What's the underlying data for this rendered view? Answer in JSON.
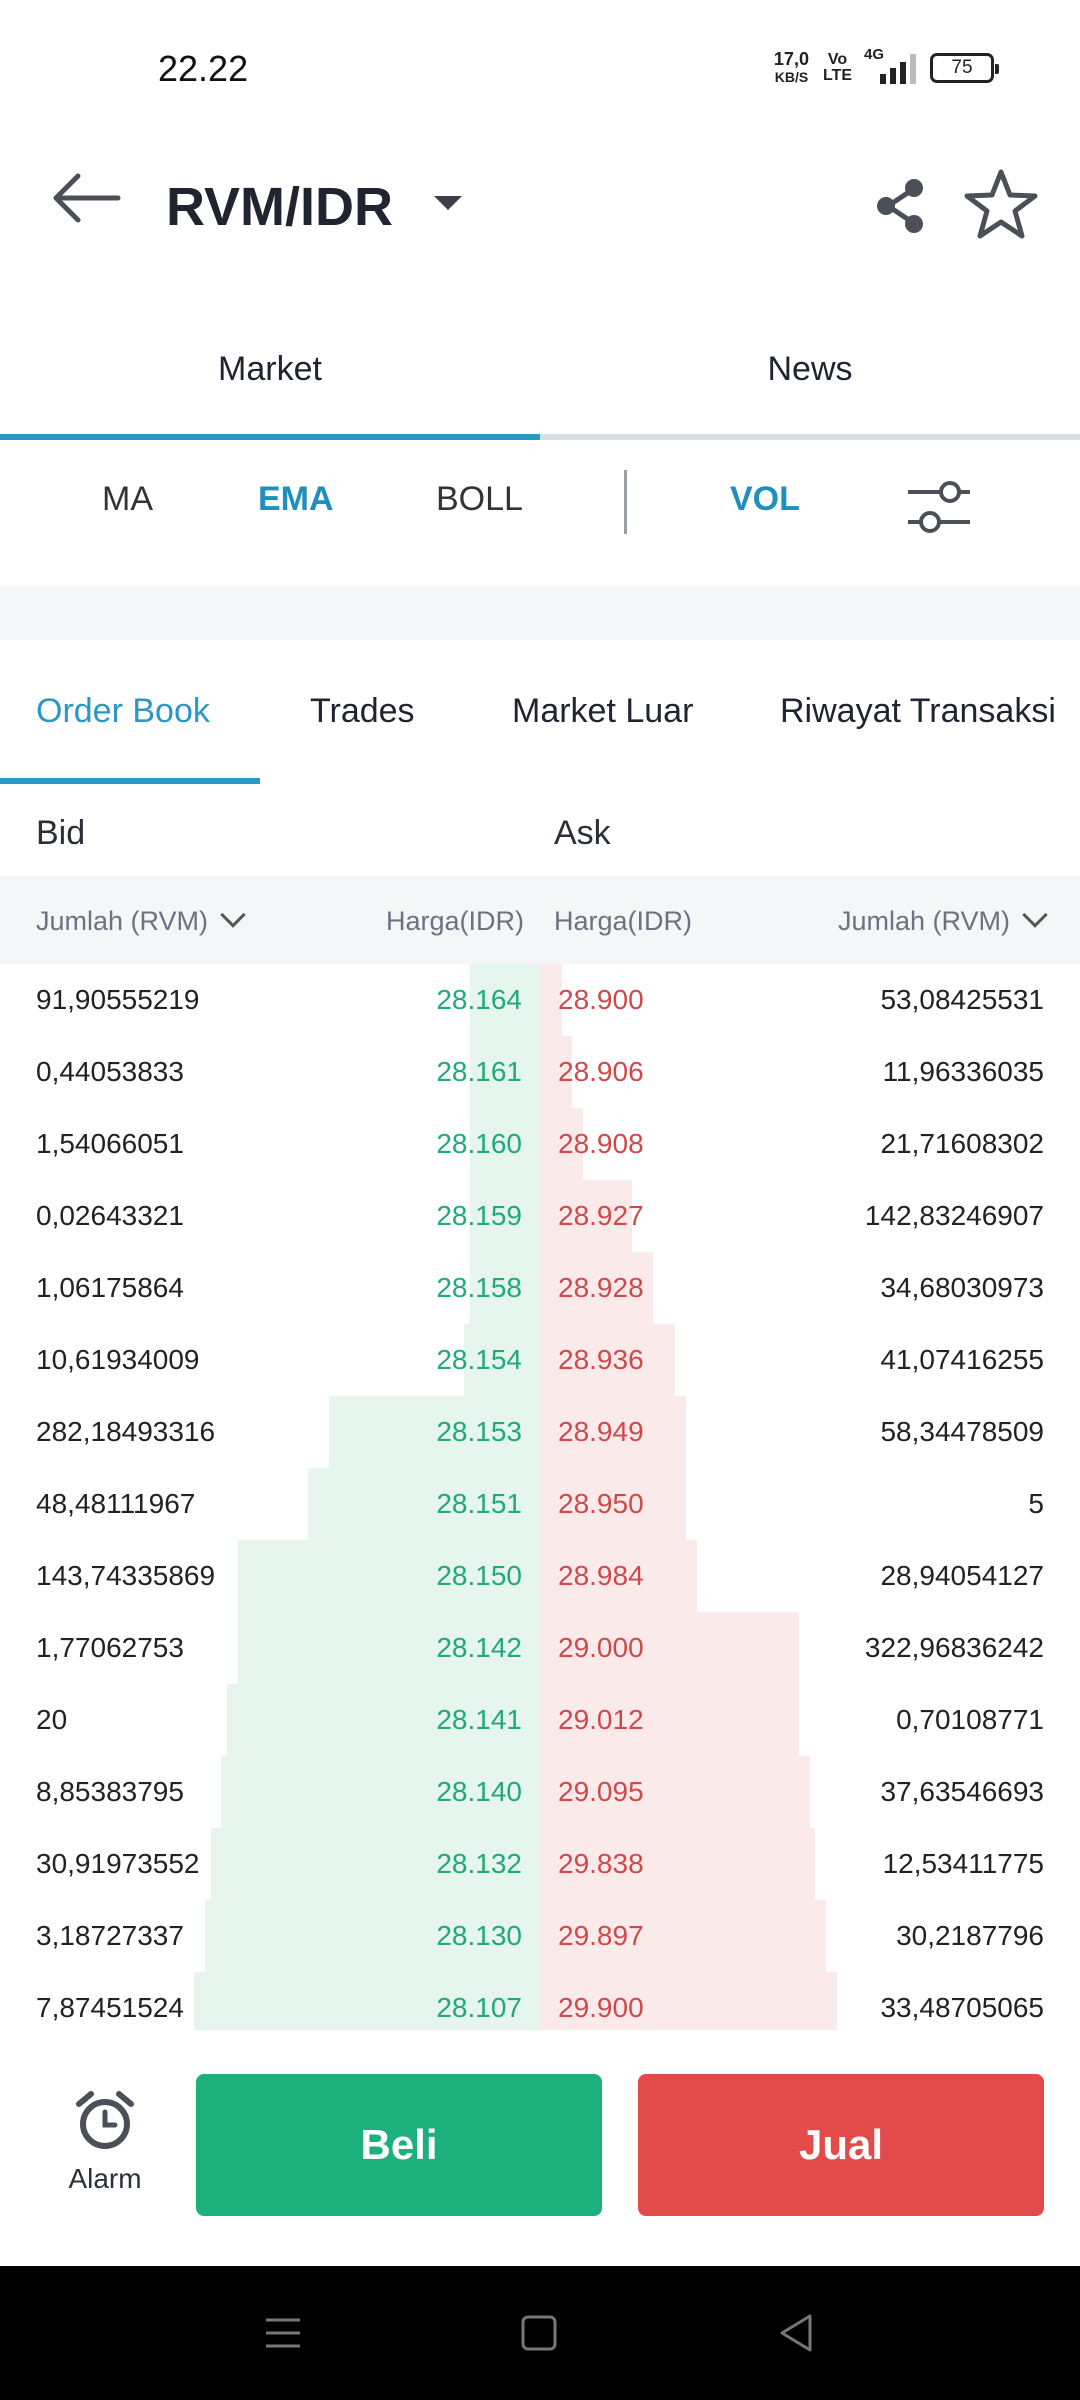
{
  "status_bar": {
    "time": "22.22",
    "net_speed_value": "17,0",
    "net_speed_unit": "KB/S",
    "volte_top": "Vo",
    "volte_bottom": "LTE",
    "network": "4G",
    "battery": "75"
  },
  "header": {
    "pair": "RVM/IDR"
  },
  "main_tabs": [
    {
      "label": "Market",
      "active": true
    },
    {
      "label": "News",
      "active": false
    }
  ],
  "indicators": {
    "ma": "MA",
    "ema": "EMA",
    "boll": "BOLL",
    "vol": "VOL"
  },
  "sub_tabs": [
    {
      "label": "Order Book",
      "active": true
    },
    {
      "label": "Trades",
      "active": false
    },
    {
      "label": "Market Luar",
      "active": false
    },
    {
      "label": "Riwayat Transaksi",
      "active": false
    }
  ],
  "order_book": {
    "bid_label": "Bid",
    "ask_label": "Ask",
    "headers": {
      "bid_qty": "Jumlah (RVM)",
      "bid_price": "Harga(IDR)",
      "ask_price": "Harga(IDR)",
      "ask_qty": "Jumlah (RVM)"
    },
    "rows": [
      {
        "bid_qty": "91,90555219",
        "bid_price": "28.164",
        "ask_price": "28.900",
        "ask_qty": "53,08425531",
        "bid_depth": 0.13,
        "ask_depth": 0.04
      },
      {
        "bid_qty": "0,44053833",
        "bid_price": "28.161",
        "ask_price": "28.906",
        "ask_qty": "11,96336035",
        "bid_depth": 0.13,
        "ask_depth": 0.06
      },
      {
        "bid_qty": "1,54066051",
        "bid_price": "28.160",
        "ask_price": "28.908",
        "ask_qty": "21,71608302",
        "bid_depth": 0.13,
        "ask_depth": 0.08
      },
      {
        "bid_qty": "0,02643321",
        "bid_price": "28.159",
        "ask_price": "28.927",
        "ask_qty": "142,83246907",
        "bid_depth": 0.13,
        "ask_depth": 0.17
      },
      {
        "bid_qty": "1,06175864",
        "bid_price": "28.158",
        "ask_price": "28.928",
        "ask_qty": "34,68030973",
        "bid_depth": 0.13,
        "ask_depth": 0.21
      },
      {
        "bid_qty": "10,61934009",
        "bid_price": "28.154",
        "ask_price": "28.936",
        "ask_qty": "41,07416255",
        "bid_depth": 0.14,
        "ask_depth": 0.25
      },
      {
        "bid_qty": "282,18493316",
        "bid_price": "28.153",
        "ask_price": "28.949",
        "ask_qty": "58,34478509",
        "bid_depth": 0.39,
        "ask_depth": 0.27
      },
      {
        "bid_qty": "48,48111967",
        "bid_price": "28.151",
        "ask_price": "28.950",
        "ask_qty": "5",
        "bid_depth": 0.43,
        "ask_depth": 0.27
      },
      {
        "bid_qty": "143,74335869",
        "bid_price": "28.150",
        "ask_price": "28.984",
        "ask_qty": "28,94054127",
        "bid_depth": 0.56,
        "ask_depth": 0.29
      },
      {
        "bid_qty": "1,77062753",
        "bid_price": "28.142",
        "ask_price": "29.000",
        "ask_qty": "322,96836242",
        "bid_depth": 0.56,
        "ask_depth": 0.48
      },
      {
        "bid_qty": "20",
        "bid_price": "28.141",
        "ask_price": "29.012",
        "ask_qty": "0,70108771",
        "bid_depth": 0.58,
        "ask_depth": 0.48
      },
      {
        "bid_qty": "8,85383795",
        "bid_price": "28.140",
        "ask_price": "29.095",
        "ask_qty": "37,63546693",
        "bid_depth": 0.59,
        "ask_depth": 0.5
      },
      {
        "bid_qty": "30,91973552",
        "bid_price": "28.132",
        "ask_price": "29.838",
        "ask_qty": "12,53411775",
        "bid_depth": 0.61,
        "ask_depth": 0.51
      },
      {
        "bid_qty": "3,18727337",
        "bid_price": "28.130",
        "ask_price": "29.897",
        "ask_qty": "30,2187796",
        "bid_depth": 0.62,
        "ask_depth": 0.53
      },
      {
        "bid_qty": "7,87451524",
        "bid_price": "28.107",
        "ask_price": "29.900",
        "ask_qty": "33,48705065",
        "bid_depth": 0.64,
        "ask_depth": 0.55
      }
    ]
  },
  "actions": {
    "alarm": "Alarm",
    "buy": "Beli",
    "sell": "Jual"
  },
  "colors": {
    "accent": "#2a97c4",
    "buy": "#1cb07d",
    "sell": "#e34b4b",
    "bid_text": "#1faa78",
    "ask_text": "#d0494a"
  }
}
